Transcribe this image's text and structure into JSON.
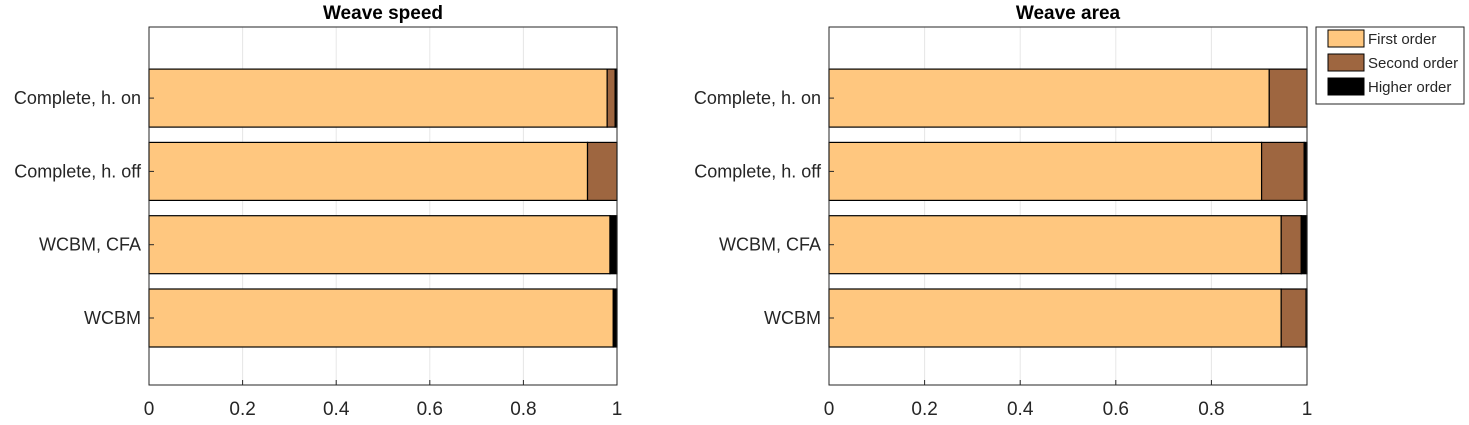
{
  "chart_data": [
    {
      "type": "bar",
      "orientation": "horizontal",
      "stacked": true,
      "title": "Weave speed",
      "categories": [
        "WCBM",
        "WCBM, CFA",
        "Complete, h. off",
        "Complete, h. on"
      ],
      "series": [
        {
          "name": "First order",
          "color": "#FFC77F",
          "values": [
            0.992,
            0.985,
            0.937,
            0.979
          ]
        },
        {
          "name": "Second order",
          "color": "#9E6640",
          "values": [
            0.0,
            0.0,
            0.063,
            0.017
          ]
        },
        {
          "name": "Higher order",
          "color": "#000000",
          "values": [
            0.008,
            0.015,
            0.0,
            0.004
          ]
        }
      ],
      "xlim": [
        0,
        1
      ],
      "xticks": [
        "0",
        "0.2",
        "0.4",
        "0.6",
        "0.8",
        "1"
      ],
      "grid": true
    },
    {
      "type": "bar",
      "orientation": "horizontal",
      "stacked": true,
      "title": "Weave area",
      "categories": [
        "WCBM",
        "WCBM, CFA",
        "Complete, h. off",
        "Complete, h. on"
      ],
      "series": [
        {
          "name": "First order",
          "color": "#FFC77F",
          "values": [
            0.946,
            0.946,
            0.905,
            0.921
          ]
        },
        {
          "name": "Second order",
          "color": "#9E6640",
          "values": [
            0.052,
            0.042,
            0.089,
            0.079
          ]
        },
        {
          "name": "Higher order",
          "color": "#000000",
          "values": [
            0.002,
            0.012,
            0.006,
            0.0
          ]
        }
      ],
      "xlim": [
        0,
        1
      ],
      "xticks": [
        "0",
        "0.2",
        "0.4",
        "0.6",
        "0.8",
        "1"
      ],
      "grid": true
    }
  ],
  "legend": {
    "placement": "outside-top-right",
    "entries": [
      "First order",
      "Second order",
      "Higher order"
    ]
  }
}
